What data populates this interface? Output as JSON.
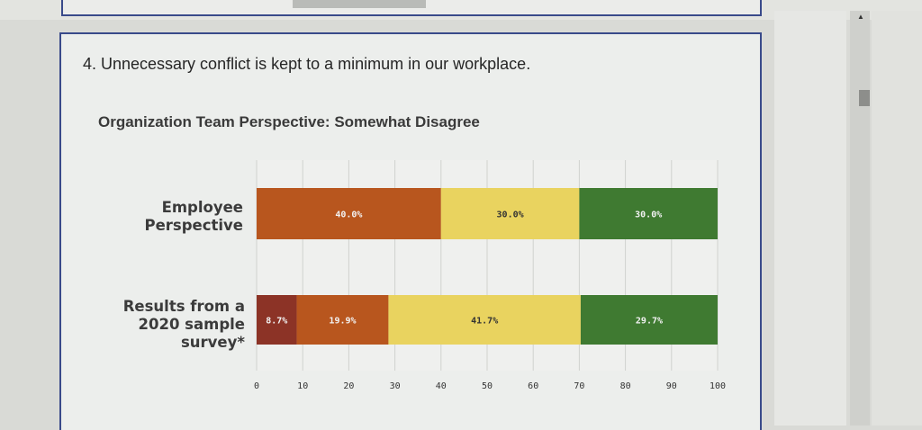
{
  "question": "4. Unnecessary conflict is kept to a minimum in our workplace.",
  "chart_data": {
    "type": "bar",
    "orientation": "horizontal",
    "stacked": true,
    "title": "Organization Team Perspective: Somewhat Disagree",
    "xlabel": "",
    "ylabel": "",
    "xlim": [
      0,
      100
    ],
    "x_ticks": [
      0,
      10,
      20,
      30,
      40,
      50,
      60,
      70,
      80,
      90,
      100
    ],
    "grid": true,
    "legend": "none",
    "categories": [
      [
        "Employee",
        "Perspective"
      ],
      [
        "Results from a",
        "2020 sample",
        "survey*"
      ]
    ],
    "rows": [
      {
        "segments": [
          {
            "value": 40.0,
            "label": "40.0%",
            "color": "#b8561e"
          },
          {
            "value": 30.0,
            "label": "30.0%",
            "color": "#e9d35f"
          },
          {
            "value": 30.0,
            "label": "30.0%",
            "color": "#3f7a31"
          }
        ]
      },
      {
        "segments": [
          {
            "value": 8.7,
            "label": "8.7%",
            "color": "#8c3326"
          },
          {
            "value": 19.9,
            "label": "19.9%",
            "color": "#b8561e"
          },
          {
            "value": 41.7,
            "label": "41.7%",
            "color": "#e9d35f"
          },
          {
            "value": 29.7,
            "label": "29.7%",
            "color": "#3f7a31"
          }
        ]
      }
    ]
  }
}
